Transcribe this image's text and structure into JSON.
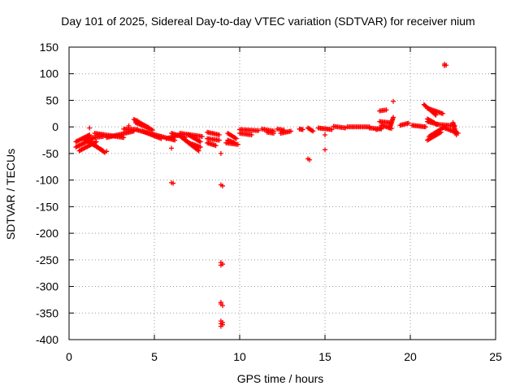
{
  "chart_data": {
    "type": "scatter",
    "title": "Day 101 of 2025, Sidereal Day-to-day VTEC variation (SDTVAR) for receiver nium",
    "xlabel": "GPS time / hours",
    "ylabel": "SDTVAR / TECUs",
    "xlim": [
      0,
      25
    ],
    "ylim": [
      -400,
      150
    ],
    "xticks": [
      0,
      5,
      10,
      15,
      20,
      25
    ],
    "yticks": [
      150,
      100,
      50,
      0,
      -50,
      -100,
      -150,
      -200,
      -250,
      -300,
      -350,
      -400
    ],
    "grid": true,
    "marker": "+",
    "color": "#ff0000",
    "segments": [
      {
        "x0": 0.4,
        "y0": -28,
        "x1": 1.2,
        "y1": -15
      },
      {
        "x0": 0.4,
        "y0": -38,
        "x1": 1.4,
        "y1": -22
      },
      {
        "x0": 0.6,
        "y0": -45,
        "x1": 1.6,
        "y1": -28
      },
      {
        "x0": 0.8,
        "y0": -22,
        "x1": 2.0,
        "y1": -18
      },
      {
        "x0": 1.0,
        "y0": -25,
        "x1": 2.0,
        "y1": -45
      },
      {
        "x0": 1.3,
        "y0": -30,
        "x1": 2.1,
        "y1": -48
      },
      {
        "x0": 1.5,
        "y0": -12,
        "x1": 3.2,
        "y1": -20
      },
      {
        "x0": 2.2,
        "y0": -20,
        "x1": 3.8,
        "y1": -8
      },
      {
        "x0": 3.2,
        "y0": -4,
        "x1": 4.0,
        "y1": -5
      },
      {
        "x0": 3.8,
        "y0": 14,
        "x1": 4.7,
        "y1": -2
      },
      {
        "x0": 3.9,
        "y0": 8,
        "x1": 4.9,
        "y1": -6
      },
      {
        "x0": 4.0,
        "y0": -6,
        "x1": 5.4,
        "y1": -18
      },
      {
        "x0": 4.3,
        "y0": -8,
        "x1": 5.4,
        "y1": -22
      },
      {
        "x0": 5.4,
        "y0": -18,
        "x1": 6.2,
        "y1": -25
      },
      {
        "x0": 5.7,
        "y0": -22,
        "x1": 6.5,
        "y1": -15
      },
      {
        "x0": 6.0,
        "y0": -12,
        "x1": 6.8,
        "y1": -20
      },
      {
        "x0": 6.5,
        "y0": -12,
        "x1": 7.8,
        "y1": -18
      },
      {
        "x0": 6.6,
        "y0": -20,
        "x1": 7.5,
        "y1": -40
      },
      {
        "x0": 6.8,
        "y0": -25,
        "x1": 7.6,
        "y1": -45
      },
      {
        "x0": 7.0,
        "y0": -15,
        "x1": 7.7,
        "y1": -28
      },
      {
        "x0": 7.2,
        "y0": -32,
        "x1": 7.7,
        "y1": -38
      },
      {
        "x0": 8.1,
        "y0": -10,
        "x1": 8.8,
        "y1": -15
      },
      {
        "x0": 8.1,
        "y0": -22,
        "x1": 8.8,
        "y1": -25
      },
      {
        "x0": 8.1,
        "y0": -30,
        "x1": 8.6,
        "y1": -35
      },
      {
        "x0": 9.3,
        "y0": -12,
        "x1": 9.8,
        "y1": -22
      },
      {
        "x0": 9.3,
        "y0": -25,
        "x1": 9.7,
        "y1": -30
      },
      {
        "x0": 9.2,
        "y0": -30,
        "x1": 9.9,
        "y1": -33
      },
      {
        "x0": 10.0,
        "y0": -5,
        "x1": 11.1,
        "y1": -7
      },
      {
        "x0": 10.0,
        "y0": -12,
        "x1": 10.7,
        "y1": -15
      },
      {
        "x0": 11.3,
        "y0": -4,
        "x1": 12.0,
        "y1": -8
      },
      {
        "x0": 11.6,
        "y0": -10,
        "x1": 12.0,
        "y1": -12
      },
      {
        "x0": 12.2,
        "y0": -4,
        "x1": 12.6,
        "y1": -6
      },
      {
        "x0": 12.4,
        "y0": -12,
        "x1": 13.0,
        "y1": -8
      },
      {
        "x0": 13.5,
        "y0": -4,
        "x1": 13.7,
        "y1": -5
      },
      {
        "x0": 14.0,
        "y0": -2,
        "x1": 14.3,
        "y1": -8
      },
      {
        "x0": 14.6,
        "y0": -2,
        "x1": 15.4,
        "y1": -5
      },
      {
        "x0": 15.5,
        "y0": 1,
        "x1": 16.2,
        "y1": -2
      },
      {
        "x0": 16.3,
        "y0": 0,
        "x1": 17.6,
        "y1": 0
      },
      {
        "x0": 17.6,
        "y0": -2,
        "x1": 18.3,
        "y1": -4
      },
      {
        "x0": 18.0,
        "y0": -5,
        "x1": 18.3,
        "y1": -2
      },
      {
        "x0": 18.2,
        "y0": 30,
        "x1": 18.6,
        "y1": 32
      },
      {
        "x0": 18.2,
        "y0": 10,
        "x1": 18.8,
        "y1": 8
      },
      {
        "x0": 18.3,
        "y0": 3,
        "x1": 18.9,
        "y1": -3
      },
      {
        "x0": 18.8,
        "y0": -2,
        "x1": 19.0,
        "y1": 18
      },
      {
        "x0": 19.4,
        "y0": 3,
        "x1": 19.9,
        "y1": 7
      },
      {
        "x0": 20.1,
        "y0": 3,
        "x1": 20.9,
        "y1": 0
      },
      {
        "x0": 20.8,
        "y0": 42,
        "x1": 21.5,
        "y1": 22
      },
      {
        "x0": 21.0,
        "y0": 35,
        "x1": 21.9,
        "y1": 25
      },
      {
        "x0": 21.0,
        "y0": 15,
        "x1": 21.4,
        "y1": 8
      },
      {
        "x0": 21.0,
        "y0": 10,
        "x1": 21.6,
        "y1": 5
      },
      {
        "x0": 21.0,
        "y0": -25,
        "x1": 21.8,
        "y1": -10
      },
      {
        "x0": 21.1,
        "y0": -18,
        "x1": 22.0,
        "y1": 0
      },
      {
        "x0": 21.5,
        "y0": 5,
        "x1": 22.6,
        "y1": 2
      },
      {
        "x0": 22.0,
        "y0": -2,
        "x1": 22.8,
        "y1": -12
      },
      {
        "x0": 22.5,
        "y0": 8,
        "x1": 22.7,
        "y1": -15
      }
    ],
    "points": [
      [
        6.0,
        -105
      ],
      [
        6.1,
        -106
      ],
      [
        6.0,
        -40
      ],
      [
        8.9,
        -50
      ],
      [
        8.9,
        -109
      ],
      [
        9.0,
        -111
      ],
      [
        8.9,
        -255
      ],
      [
        8.9,
        -260
      ],
      [
        9.0,
        -258
      ],
      [
        8.9,
        -330
      ],
      [
        8.9,
        -333
      ],
      [
        9.0,
        -336
      ],
      [
        8.9,
        -365
      ],
      [
        8.9,
        -370
      ],
      [
        8.9,
        -375
      ],
      [
        9.0,
        -368
      ],
      [
        9.0,
        -372
      ],
      [
        14.0,
        -60
      ],
      [
        14.1,
        -62
      ],
      [
        15.0,
        -15
      ],
      [
        15.0,
        -43
      ],
      [
        19.0,
        48
      ],
      [
        22.0,
        115
      ],
      [
        22.0,
        118
      ],
      [
        22.1,
        116
      ],
      [
        1.2,
        -2
      ],
      [
        2.2,
        -46
      ],
      [
        4.0,
        12
      ],
      [
        3.5,
        2
      ]
    ]
  }
}
